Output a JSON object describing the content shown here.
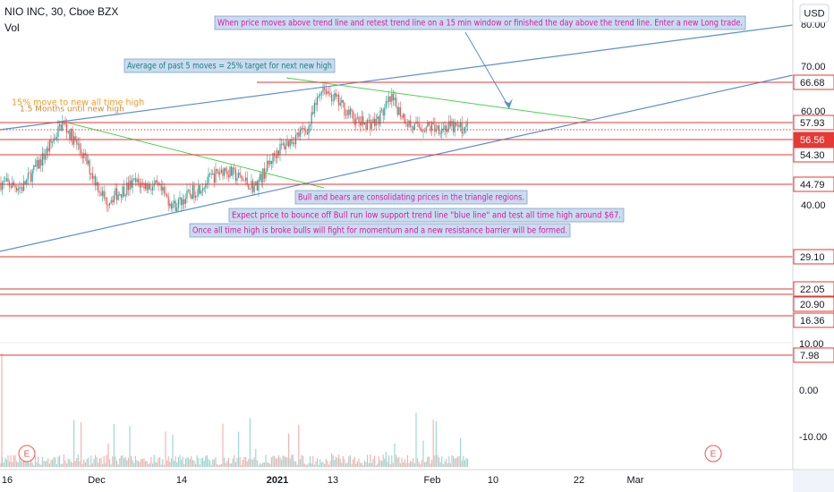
{
  "header": {
    "symbol": "NIO INC, 30, Cboe BZX",
    "volume": "Vol"
  },
  "currency": "USD",
  "price_axis": [
    "80.00",
    "70.00",
    "60.00",
    "40.00"
  ],
  "volume_axis": [
    "10.00",
    "0.00",
    "-10.00"
  ],
  "price_levels": [
    "66.68",
    "57.93",
    "56.56",
    "54.30",
    "44.79",
    "29.10",
    "22.05",
    "20.90",
    "16.36",
    "7.98"
  ],
  "annotations": [
    "When price moves above trend line and retest trend line on a 15 min window or finished the day above the trend line. Enter a new Long trade.",
    "Average of past 5 moves = 25% target for next new high",
    "15% move to new all time high",
    "1.5 Months until new high",
    "Bull and bears are consolidating prices in the triangle regions.",
    "Expect price to bounce off Bull run low support trend line \"blue line\" and test all time high around $67.",
    "Once all time high is broke bulls will fight for momentum and a new resistance barrier will be formed."
  ],
  "time_axis": [
    "16",
    "Dec",
    "14",
    "2021",
    "13",
    "Feb",
    "10",
    "22",
    "Mar"
  ],
  "events": [
    "E",
    "E"
  ]
}
